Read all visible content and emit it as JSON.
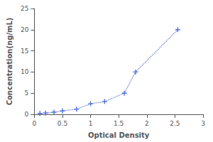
{
  "chart_data": {
    "type": "line",
    "x": [
      0.1,
      0.2,
      0.35,
      0.5,
      0.75,
      1.0,
      1.25,
      1.6,
      1.8,
      2.55
    ],
    "values": [
      0.2,
      0.3,
      0.5,
      0.8,
      1.2,
      2.5,
      3.0,
      5.0,
      10.0,
      20.0
    ],
    "xlabel": "Optical Density",
    "ylabel": "Concentration(ng/mL)",
    "xlim": [
      0,
      3
    ],
    "ylim": [
      0,
      25
    ],
    "xticks": [
      0,
      0.5,
      1,
      1.5,
      2,
      2.5,
      3
    ],
    "yticks": [
      0,
      5,
      10,
      15,
      20,
      25
    ],
    "marker": "+",
    "line_style": "dotted",
    "grid": false
  }
}
